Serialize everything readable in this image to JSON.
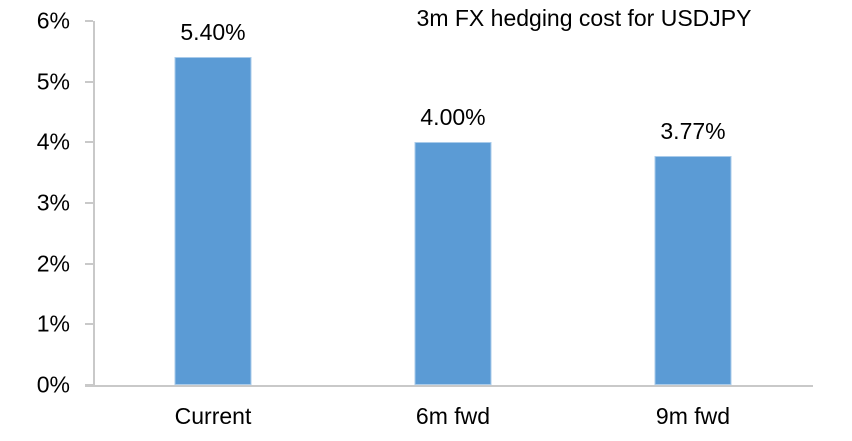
{
  "chart_data": {
    "type": "bar",
    "title": "3m FX hedging cost for USDJPY",
    "categories": [
      "Current",
      "6m fwd",
      "9m fwd"
    ],
    "values": [
      5.4,
      4.0,
      3.77
    ],
    "value_labels": [
      "5.40%",
      "4.00%",
      "3.77%"
    ],
    "xlabel": "",
    "ylabel": "",
    "ylim": [
      0,
      6
    ],
    "y_ticks": [
      {
        "value": 0,
        "label": "0%"
      },
      {
        "value": 1,
        "label": "1%"
      },
      {
        "value": 2,
        "label": "2%"
      },
      {
        "value": 3,
        "label": "3%"
      },
      {
        "value": 4,
        "label": "4%"
      },
      {
        "value": 5,
        "label": "5%"
      },
      {
        "value": 6,
        "label": "6%"
      }
    ],
    "grid": false,
    "legend": null,
    "bar_color": "#5B9BD5",
    "axis_color": "#C9C9C9",
    "text_color": "#000000"
  }
}
